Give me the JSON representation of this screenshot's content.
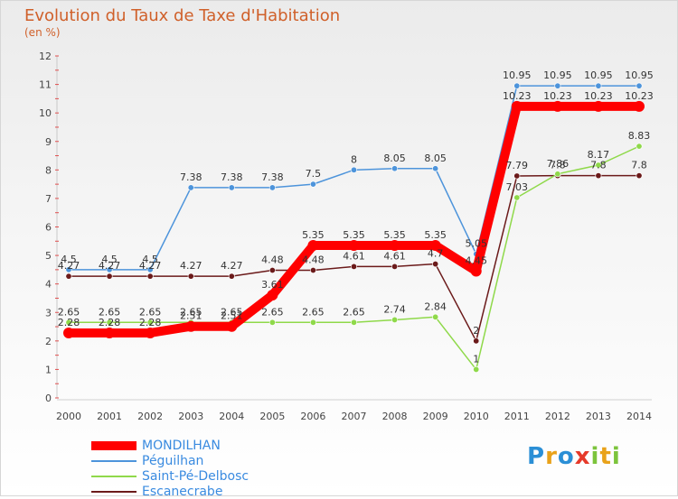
{
  "chart_data": {
    "type": "line",
    "title": "Evolution du Taux de Taxe d'Habitation",
    "subtitle": "(en %)",
    "x": [
      "2000",
      "2001",
      "2002",
      "2003",
      "2004",
      "2005",
      "2006",
      "2007",
      "2008",
      "2009",
      "2010",
      "2011",
      "2012",
      "2013",
      "2014"
    ],
    "ylim": [
      0,
      12
    ],
    "yticks": [
      "0",
      "1",
      "2",
      "3",
      "4",
      "5",
      "6",
      "7",
      "8",
      "9",
      "10",
      "11",
      "12"
    ],
    "series": [
      {
        "name": "MONDILHAN",
        "color": "#ff0000",
        "values": [
          2.28,
          2.28,
          2.28,
          2.51,
          2.51,
          3.61,
          5.35,
          5.35,
          5.35,
          5.35,
          4.45,
          10.23,
          10.23,
          10.23,
          10.23
        ],
        "labels": [
          "2.28",
          "2.28",
          "2.28",
          "2.51",
          "2.51",
          "3.61",
          "5.35",
          "5.35",
          "5.35",
          "5.35",
          "4.45",
          "10.23",
          "10.23",
          "10.23",
          "10.23"
        ]
      },
      {
        "name": "Péguilhan",
        "color": "#4d94db",
        "values": [
          4.5,
          4.5,
          4.5,
          7.38,
          7.38,
          7.38,
          7.5,
          8,
          8.05,
          8.05,
          5.05,
          10.95,
          10.95,
          10.95,
          10.95
        ],
        "labels": [
          "4.5",
          "4.5",
          "4.5",
          "7.38",
          "7.38",
          "7.38",
          "7.5",
          "8",
          "8.05",
          "8.05",
          "5.05",
          "10.95",
          "10.95",
          "10.95",
          "10.95"
        ]
      },
      {
        "name": "Saint-Pé-Delbosc",
        "color": "#8fd94a",
        "values": [
          2.65,
          2.65,
          2.65,
          2.65,
          2.65,
          2.65,
          2.65,
          2.65,
          2.74,
          2.84,
          1,
          7.03,
          7.86,
          8.17,
          8.83
        ],
        "labels": [
          "2.65",
          "2.65",
          "2.65",
          "2.65",
          "2.65",
          "2.65",
          "2.65",
          "2.65",
          "2.74",
          "2.84",
          "1",
          "7.03",
          "7.86",
          "8.17",
          "8.83"
        ]
      },
      {
        "name": "Escanecrabe",
        "color": "#6b1a1a",
        "values": [
          4.27,
          4.27,
          4.27,
          4.27,
          4.27,
          4.48,
          4.48,
          4.61,
          4.61,
          4.7,
          2,
          7.79,
          7.8,
          7.8,
          7.8
        ],
        "labels": [
          "4.27",
          "4.27",
          "4.27",
          "4.27",
          "4.27",
          "4.48",
          "4.48",
          "4.61",
          "4.61",
          "4.7",
          "2",
          "7.79",
          "7.8",
          "7.8",
          "7.8"
        ]
      }
    ],
    "legend_position": "bottom-left"
  },
  "logo": {
    "letters": [
      {
        "ch": "P",
        "color": "#2b8fd6"
      },
      {
        "ch": "r",
        "color": "#e9a21a"
      },
      {
        "ch": "o",
        "color": "#2b8fd6"
      },
      {
        "ch": "x",
        "color": "#e63a2a"
      },
      {
        "ch": "i",
        "color": "#7cc43c"
      },
      {
        "ch": "t",
        "color": "#e9a21a"
      },
      {
        "ch": "i",
        "color": "#7cc43c"
      }
    ]
  }
}
